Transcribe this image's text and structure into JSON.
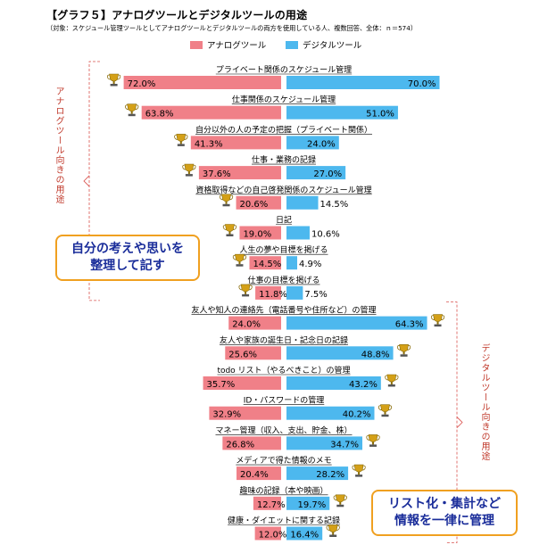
{
  "header": {
    "title": "【グラフ５】アナログツールとデジタルツールの用途",
    "subtitle": "（対象：スケジュール管理ツールとしてアナログツールとデジタルツールの両方を使用している人、複数回答、全体：ｎ＝574）"
  },
  "legend": {
    "analog": "アナログツール",
    "digital": "デジタルツール"
  },
  "colors": {
    "analog": "#f08088",
    "digital": "#4db8ee",
    "bracket": "#d9534f",
    "note_border": "#f0a020",
    "note_text": "#1a2d9a"
  },
  "side_labels": {
    "analog": "アナログツール向きの用途",
    "digital": "デジタルツール向きの用途"
  },
  "notes": {
    "analog": [
      "自分の考えや思いを",
      "整理して記す"
    ],
    "digital": [
      "リスト化・集計など",
      "情報を一律に管理"
    ]
  },
  "chart_data": {
    "type": "bar",
    "orientation": "horizontal-diverging",
    "unit": "%",
    "categories": [
      "プライベート関係のスケジュール管理",
      "仕事関係のスケジュール管理",
      "自分以外の人の予定の把握（プライベート関係）",
      "仕事・業務の記録",
      "資格取得などの自己啓発関係のスケジュール管理",
      "日記",
      "人生の夢や目標を掲げる",
      "仕事の目標を掲げる",
      "友人や知人の連絡先（電話番号や住所など）の管理",
      "友人や家族の誕生日・記念日の記録",
      "todo リスト（やるべきこと）の管理",
      "ID・パスワードの管理",
      "マネー管理（収入、支出、貯金、株）",
      "メディアで得た情報のメモ",
      "趣味の記録（本や映画）",
      "健康・ダイエットに関する記録"
    ],
    "series": [
      {
        "name": "アナログツール",
        "labels": [
          "72.0%",
          "63.8%",
          "41.3%",
          "37.6%",
          "20.6%",
          "19.0%",
          "14.5%",
          "11.8%",
          "24.0%",
          "25.6%",
          "35.7%",
          "32.9%",
          "26.8%",
          "20.4%",
          "12.7%",
          "12.0%"
        ],
        "values": [
          72.0,
          63.8,
          41.3,
          37.6,
          20.6,
          19.0,
          14.5,
          11.8,
          24.0,
          25.6,
          35.7,
          32.9,
          26.8,
          20.4,
          12.7,
          12.0
        ]
      },
      {
        "name": "デジタルツール",
        "labels": [
          "70.0%",
          "51.0%",
          "24.0%",
          "27.0%",
          "14.5%",
          "10.6%",
          "4.9%",
          "7.5%",
          "64.3%",
          "48.8%",
          "43.2%",
          "40.2%",
          "34.7%",
          "28.2%",
          "19.7%",
          "16.4%"
        ],
        "values": [
          70.0,
          51.0,
          24.0,
          27.0,
          14.5,
          10.6,
          4.9,
          7.5,
          64.3,
          48.8,
          43.2,
          40.2,
          34.7,
          28.2,
          19.7,
          16.4
        ]
      }
    ],
    "trophy_side": [
      "analog",
      "analog",
      "analog",
      "analog",
      "analog",
      "analog",
      "analog",
      "analog",
      "digital",
      "digital",
      "digital",
      "digital",
      "digital",
      "digital",
      "digital",
      "digital"
    ],
    "groups": [
      {
        "label": "アナログツール向きの用途",
        "rows": [
          0,
          7
        ]
      },
      {
        "label": "デジタルツール向きの用途",
        "rows": [
          8,
          15
        ]
      }
    ]
  }
}
